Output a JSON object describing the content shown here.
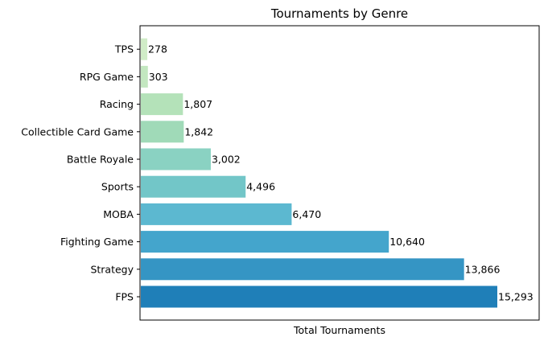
{
  "chart_data": {
    "type": "bar",
    "orientation": "horizontal",
    "title": "Tournaments by Genre",
    "xlabel": "Total Tournaments",
    "ylabel": "",
    "xticks_visible": false,
    "grid": false,
    "legend": "none",
    "categories": [
      "FPS",
      "Strategy",
      "Fighting Game",
      "MOBA",
      "Sports",
      "Battle Royale",
      "Collectible Card Game",
      "Racing",
      "RPG Game",
      "TPS"
    ],
    "values": [
      15293,
      13866,
      10640,
      6470,
      4496,
      3002,
      1842,
      1807,
      303,
      278
    ],
    "value_labels": [
      "15,293",
      "13,866",
      "10,640",
      "6,470",
      "4,496",
      "3,002",
      "1,842",
      "1,807",
      "303",
      "278"
    ],
    "colors": [
      "#1f7fb8",
      "#3595c4",
      "#44a5cc",
      "#5cb8d0",
      "#72c6c8",
      "#8ad2c2",
      "#a0dab8",
      "#b4e2b9",
      "#c3e7c0",
      "#d0ecc7"
    ],
    "xlim": [
      0,
      16000
    ]
  }
}
